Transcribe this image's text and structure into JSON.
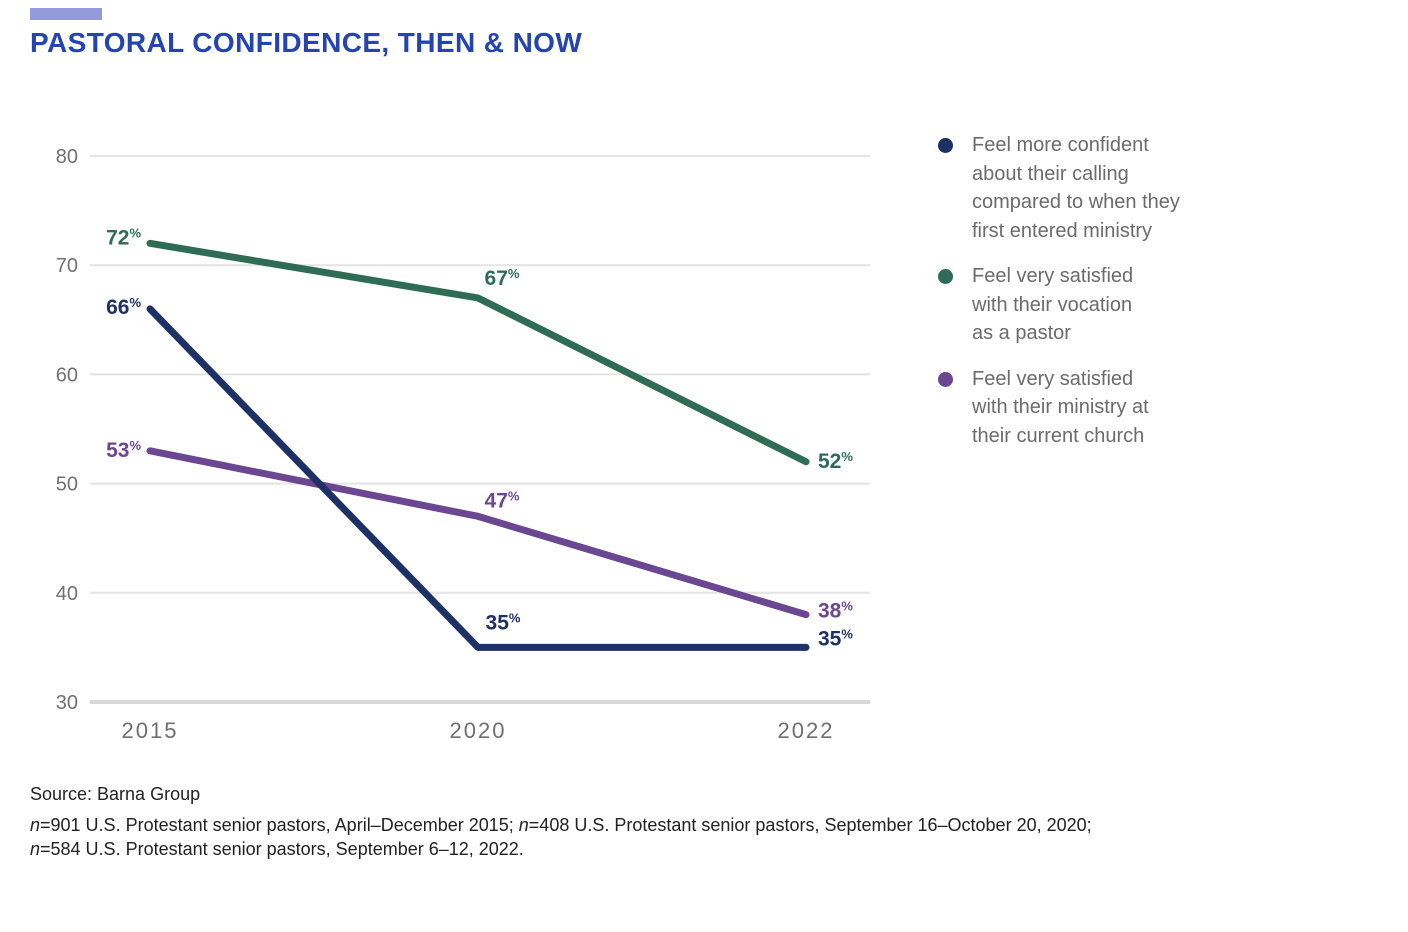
{
  "title": "PASTORAL CONFIDENCE, THEN & NOW",
  "accent": {
    "title_color": "#2444B4",
    "top_bar_color": "#9399DB"
  },
  "chart_data": {
    "type": "line",
    "categories": [
      "2015",
      "2020",
      "2022"
    ],
    "series": [
      {
        "name": "Feel more confident about their calling compared to when they first entered ministry",
        "values": [
          66,
          35,
          35
        ],
        "color": "#1E3167"
      },
      {
        "name": "Feel very satisfied with their vocation as a pastor",
        "values": [
          72,
          67,
          52
        ],
        "color": "#2E6C56"
      },
      {
        "name": "Feel very satisfied with their ministry at their current church",
        "values": [
          53,
          47,
          38
        ],
        "color": "#6B4691"
      }
    ],
    "yticks": [
      80,
      70,
      60,
      50,
      40,
      30
    ],
    "ylim": [
      30,
      80
    ],
    "grid": true,
    "legend_position": "right",
    "data_label_suffix": "%",
    "grid_color": "#E4E4E4",
    "baseline_color": "#D8D8D8",
    "tick_label_color": "#717171",
    "x_label_color": "#6F6F6F"
  },
  "legend": {
    "items": [
      {
        "color": "#1E3167",
        "lines": [
          "Feel more confident",
          "about their calling",
          "compared to when they",
          "first entered ministry"
        ]
      },
      {
        "color": "#2E6C56",
        "lines": [
          "Feel very satisfied",
          "with their vocation",
          "as a pastor"
        ]
      },
      {
        "color": "#6B4691",
        "lines": [
          "Feel very satisfied",
          "with their ministry at",
          "their current church"
        ]
      }
    ]
  },
  "source": {
    "line1": "Source: Barna Group",
    "line2": {
      "seg1": "n",
      "seg2": "=901 U.S. Protestant senior pastors, April–December 2015; ",
      "seg3": "n",
      "seg4": "=408 U.S. Protestant senior pastors, September 16–October 20, 2020;"
    },
    "line3": {
      "seg1": "n",
      "seg2": "=584 U.S. Protestant senior pastors, September 6–12, 2022."
    }
  }
}
